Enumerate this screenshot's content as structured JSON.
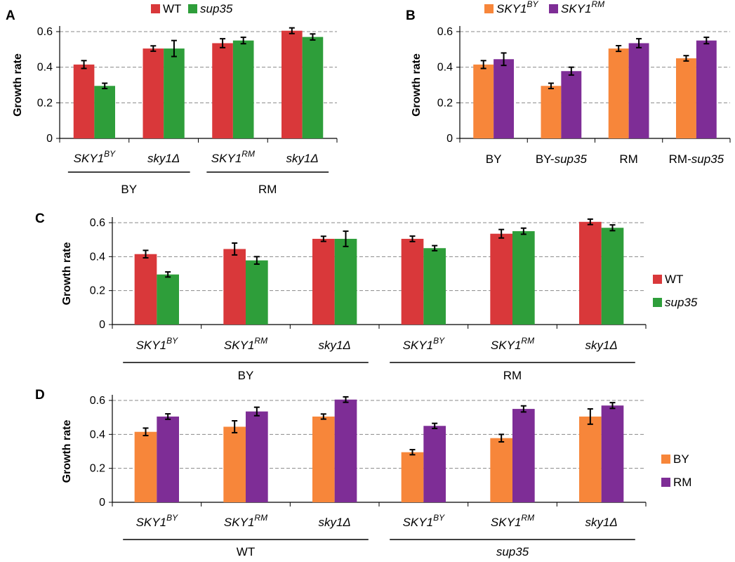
{
  "colors": {
    "red": "#d9383a",
    "green": "#2e9e3a",
    "orange": "#f7863a",
    "purple": "#7e2d96",
    "grid": "#8a8a8a",
    "axis": "#000000"
  },
  "chart_data": [
    {
      "id": "A",
      "type": "bar",
      "panel_label": "A",
      "ylabel": "Growth rate",
      "ylim": [
        0,
        0.6
      ],
      "yticks": [
        "0",
        "0.2",
        "0.4",
        "0.6"
      ],
      "grid": true,
      "legend_position": "top",
      "categories": [
        {
          "base": "SKY1",
          "sup": "BY",
          "italic": true
        },
        {
          "base": "sky1Δ",
          "sup": "",
          "italic": true
        },
        {
          "base": "SKY1",
          "sup": "RM",
          "italic": true
        },
        {
          "base": "sky1Δ",
          "sup": "",
          "italic": true
        }
      ],
      "groups": [
        {
          "label": "BY",
          "from": 0,
          "to": 1
        },
        {
          "label": "RM",
          "from": 2,
          "to": 3
        }
      ],
      "series": [
        {
          "name": "WT",
          "italic": false,
          "color": "red",
          "values": [
            0.415,
            0.505,
            0.535,
            0.605
          ],
          "errors": [
            0.022,
            0.015,
            0.025,
            0.016
          ]
        },
        {
          "name": "sup35",
          "italic": true,
          "color": "green",
          "values": [
            0.295,
            0.505,
            0.55,
            0.57
          ],
          "errors": [
            0.015,
            0.045,
            0.018,
            0.017
          ]
        }
      ]
    },
    {
      "id": "B",
      "type": "bar",
      "panel_label": "B",
      "ylabel": "Growth rate",
      "ylim": [
        0,
        0.6
      ],
      "yticks": [
        "0",
        "0.2",
        "0.4",
        "0.6"
      ],
      "grid": true,
      "legend_position": "top",
      "categories": [
        {
          "parts": [
            {
              "t": "BY",
              "i": false
            }
          ]
        },
        {
          "parts": [
            {
              "t": "BY-",
              "i": false
            },
            {
              "t": "sup35",
              "i": true
            }
          ]
        },
        {
          "parts": [
            {
              "t": "RM",
              "i": false
            }
          ]
        },
        {
          "parts": [
            {
              "t": "RM-",
              "i": false
            },
            {
              "t": "sup35",
              "i": true
            }
          ]
        }
      ],
      "series": [
        {
          "name": "SKY1",
          "name_sup": "BY",
          "italic": true,
          "color": "orange",
          "values": [
            0.415,
            0.295,
            0.505,
            0.45
          ],
          "errors": [
            0.022,
            0.015,
            0.016,
            0.015
          ]
        },
        {
          "name": "SKY1",
          "name_sup": "RM",
          "italic": true,
          "color": "purple",
          "values": [
            0.445,
            0.378,
            0.535,
            0.55
          ],
          "errors": [
            0.035,
            0.022,
            0.025,
            0.018
          ]
        }
      ]
    },
    {
      "id": "C",
      "type": "bar",
      "panel_label": "C",
      "ylabel": "Growth rate",
      "ylim": [
        0,
        0.6
      ],
      "yticks": [
        "0",
        "0.2",
        "0.4",
        "0.6"
      ],
      "grid": true,
      "legend_position": "right",
      "categories": [
        {
          "base": "SKY1",
          "sup": "BY",
          "italic": true
        },
        {
          "base": "SKY1",
          "sup": "RM",
          "italic": true
        },
        {
          "base": "sky1Δ",
          "sup": "",
          "italic": true
        },
        {
          "base": "SKY1",
          "sup": "BY",
          "italic": true
        },
        {
          "base": "SKY1",
          "sup": "RM",
          "italic": true
        },
        {
          "base": "sky1Δ",
          "sup": "",
          "italic": true
        }
      ],
      "groups": [
        {
          "label": "BY",
          "from": 0,
          "to": 2,
          "italic": false
        },
        {
          "label": "RM",
          "from": 3,
          "to": 5,
          "italic": false
        }
      ],
      "series": [
        {
          "name": "WT",
          "italic": false,
          "color": "red",
          "values": [
            0.415,
            0.445,
            0.505,
            0.505,
            0.535,
            0.605
          ],
          "errors": [
            0.022,
            0.035,
            0.015,
            0.016,
            0.025,
            0.016
          ]
        },
        {
          "name": "sup35",
          "italic": true,
          "color": "green",
          "values": [
            0.295,
            0.378,
            0.505,
            0.45,
            0.55,
            0.57
          ],
          "errors": [
            0.015,
            0.022,
            0.045,
            0.015,
            0.018,
            0.017
          ]
        }
      ]
    },
    {
      "id": "D",
      "type": "bar",
      "panel_label": "D",
      "ylabel": "Growth rate",
      "ylim": [
        0,
        0.6
      ],
      "yticks": [
        "0",
        "0.2",
        "0.4",
        "0.6"
      ],
      "grid": true,
      "legend_position": "right",
      "categories": [
        {
          "base": "SKY1",
          "sup": "BY",
          "italic": true
        },
        {
          "base": "SKY1",
          "sup": "RM",
          "italic": true
        },
        {
          "base": "sky1Δ",
          "sup": "",
          "italic": true
        },
        {
          "base": "SKY1",
          "sup": "BY",
          "italic": true
        },
        {
          "base": "SKY1",
          "sup": "RM",
          "italic": true
        },
        {
          "base": "sky1Δ",
          "sup": "",
          "italic": true
        }
      ],
      "groups": [
        {
          "label": "WT",
          "from": 0,
          "to": 2,
          "italic": false
        },
        {
          "label": "sup35",
          "from": 3,
          "to": 5,
          "italic": true
        }
      ],
      "series": [
        {
          "name": "BY",
          "italic": false,
          "color": "orange",
          "values": [
            0.415,
            0.445,
            0.505,
            0.295,
            0.378,
            0.505
          ],
          "errors": [
            0.022,
            0.035,
            0.015,
            0.015,
            0.022,
            0.045
          ]
        },
        {
          "name": "RM",
          "italic": false,
          "color": "purple",
          "values": [
            0.505,
            0.535,
            0.605,
            0.45,
            0.55,
            0.57
          ],
          "errors": [
            0.016,
            0.025,
            0.016,
            0.015,
            0.018,
            0.017
          ]
        }
      ]
    }
  ]
}
